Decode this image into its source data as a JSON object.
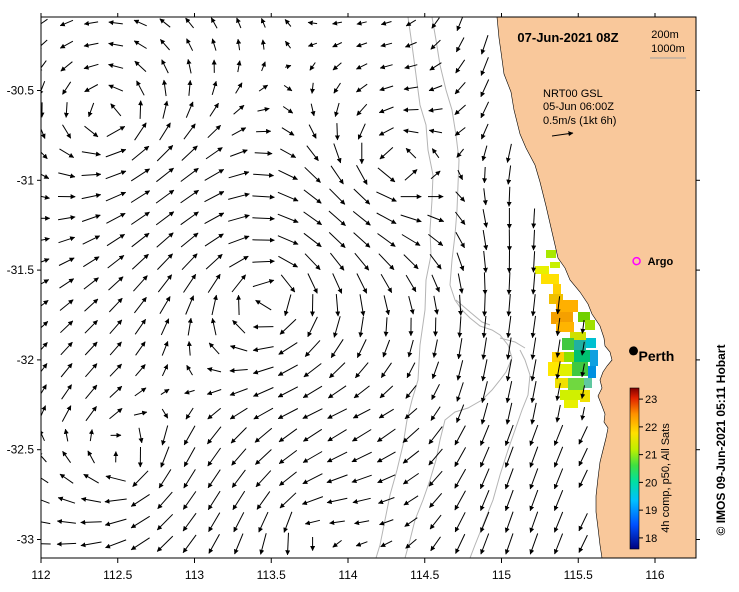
{
  "map": {
    "title": "07-Jun-2021 08Z",
    "x_axis": {
      "ticks": [
        112,
        112.5,
        113,
        113.5,
        114,
        114.5,
        115,
        115.5,
        116
      ],
      "labels": [
        "112",
        "112.5",
        "113",
        "113.5",
        "114",
        "114.5",
        "115",
        "115.5",
        "116"
      ],
      "range": [
        112,
        116.3
      ]
    },
    "y_axis": {
      "ticks": [
        -30.5,
        -31,
        -31.5,
        -32,
        -32.5,
        -33
      ],
      "labels": [
        "-30.5",
        "-31",
        "-31.5",
        "-32",
        "-32.5",
        "-33"
      ],
      "range": [
        -33.1,
        -30.05
      ]
    },
    "contour_legend": {
      "line1": "200m",
      "line2": "1000m"
    },
    "current_legend": {
      "line1": "NRT00 GSL",
      "line2": "05-Jun 06:00Z",
      "line3": "0.5m/s (1kt 6h)"
    },
    "argo": {
      "label": "Argo",
      "lon": 115.88,
      "lat": -31.45,
      "color": "#ff00ff"
    },
    "city": {
      "label": "Perth",
      "lon": 115.86,
      "lat": -31.95
    },
    "land_color": "#f9c89b",
    "colorbar": {
      "ticks": [
        "23",
        "22",
        "21",
        "20",
        "19",
        "18"
      ],
      "min": 17.6,
      "max": 23.4,
      "caption": "4h comp, p50, All Sats"
    },
    "credit": "© IMOS 09-Jun-2021 05:11 Hobart"
  }
}
